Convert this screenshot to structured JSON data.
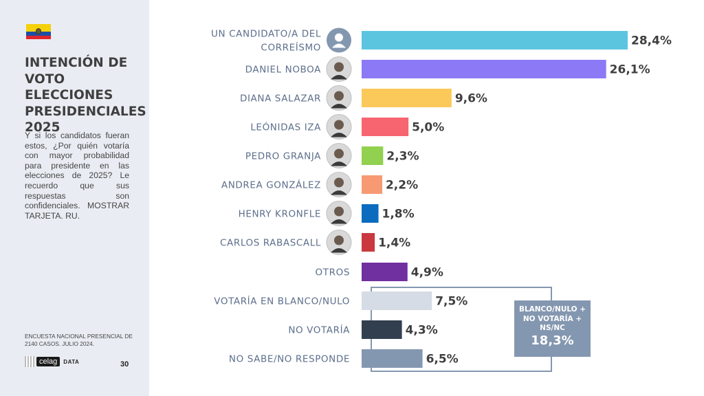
{
  "sidebar": {
    "title": "INTENCIÓN DE VOTO ELECCIONES PRESIDENCIALES 2025",
    "question": "Y si los candidatos fueran estos, ¿Por quién votaría con mayor probabilidad para presidente en las elecciones de 2025? Le recuerdo que sus respuestas son confidenciales. MOSTRAR TARJETA. RU.",
    "source": "ENCUESTA NACIONAL PRESENCIAL DE 2140 CASOS. JULIO 2024.",
    "logo_text": "celag",
    "logo_suffix": "DATA",
    "page_number": "30",
    "flag_icon": "ecuador-flag-icon"
  },
  "summary_box": {
    "label": "BLANCO/NULO + NO VOTARÍA + NS/NC",
    "value": "18,3%"
  },
  "chart_data": {
    "type": "bar",
    "orientation": "horizontal",
    "categories": [
      "UN CANDIDATO/A DEL CORREÍSMO",
      "DANIEL NOBOA",
      "DIANA SALAZAR",
      "LEÓNIDAS IZA",
      "PEDRO GRANJA",
      "ANDREA GONZÁLEZ",
      "HENRY KRONFLE",
      "CARLOS RABASCALL",
      "OTROS",
      "VOTARÍA EN BLANCO/NULO",
      "NO VOTARÍA",
      "NO SABE/NO RESPONDE"
    ],
    "values": [
      28.4,
      26.1,
      9.6,
      5.0,
      2.3,
      2.2,
      1.8,
      1.4,
      4.9,
      7.5,
      4.3,
      6.5
    ],
    "value_labels": [
      "28,4%",
      "26,1%",
      "9,6%",
      "5,0%",
      "2,3%",
      "2,2%",
      "1,8%",
      "1,4%",
      "4,9%",
      "7,5%",
      "4,3%",
      "6,5%"
    ],
    "colors": [
      "#5bc5e0",
      "#8b79f5",
      "#fbc85a",
      "#f66570",
      "#92d050",
      "#f79a74",
      "#0b6bbf",
      "#c9393f",
      "#7030a0",
      "#d6dce5",
      "#323f4f",
      "#8497b0"
    ],
    "avatars": [
      "person-placeholder-icon",
      "candidate-photo-icon",
      "candidate-photo-icon",
      "candidate-photo-icon",
      "candidate-photo-icon",
      "candidate-photo-icon",
      "candidate-photo-icon",
      "candidate-photo-icon",
      "",
      "",
      "",
      ""
    ],
    "xlim": [
      0,
      28.4
    ],
    "grid": false
  }
}
